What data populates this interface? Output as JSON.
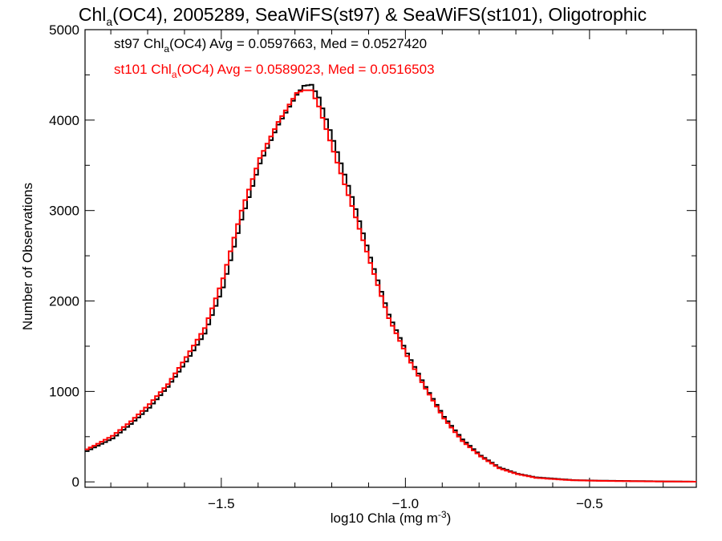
{
  "chart_data": {
    "type": "line",
    "title": "Chl",
    "title_sub": "a",
    "title_rest": "(OC4), 2005289, SeaWiFS(st97) & SeaWiFS(st101), Oligotrophic",
    "xlabel": "log10 Chla (mg m",
    "xlabel_sup": "-3",
    "xlabel_end": ")",
    "ylabel": "Number of Observations",
    "xlim": [
      -1.87,
      -0.21
    ],
    "ylim": [
      -60,
      5000
    ],
    "xticks": [
      -1.5,
      -1.0,
      -0.5
    ],
    "xtick_labels": [
      "−1.5",
      "−1.0",
      "−0.5"
    ],
    "yticks": [
      0,
      1000,
      2000,
      3000,
      4000,
      5000
    ],
    "ytick_labels": [
      "0",
      "1000",
      "2000",
      "3000",
      "4000",
      "5000"
    ],
    "step_style": "histogram-steps",
    "series": [
      {
        "name": "st97",
        "color": "#000000",
        "legend": {
          "pre": "st97 Chl",
          "sub": "a",
          "post": "(OC4) Avg = 0.0597663, Med = 0.0527420"
        },
        "x": [
          -1.87,
          -1.85,
          -1.8,
          -1.75,
          -1.7,
          -1.65,
          -1.6,
          -1.55,
          -1.5,
          -1.45,
          -1.4,
          -1.35,
          -1.3,
          -1.28,
          -1.26,
          -1.24,
          -1.2,
          -1.15,
          -1.1,
          -1.05,
          -1.0,
          -0.95,
          -0.9,
          -0.85,
          -0.8,
          -0.75,
          -0.7,
          -0.65,
          -0.6,
          -0.55,
          -0.5,
          -0.45,
          -0.4,
          -0.3,
          -0.21
        ],
        "y": [
          340,
          380,
          480,
          640,
          820,
          1050,
          1330,
          1640,
          2150,
          2900,
          3520,
          3950,
          4280,
          4380,
          4390,
          4250,
          3770,
          3150,
          2480,
          1850,
          1420,
          1050,
          720,
          470,
          290,
          160,
          90,
          50,
          35,
          20,
          15,
          12,
          10,
          5,
          2
        ]
      },
      {
        "name": "st101",
        "color": "#ff0000",
        "legend": {
          "pre": "st101 Chl",
          "sub": "a",
          "post": "(OC4) Avg = 0.0589023, Med = 0.0516503"
        },
        "x": [
          -1.87,
          -1.85,
          -1.8,
          -1.75,
          -1.7,
          -1.65,
          -1.6,
          -1.55,
          -1.5,
          -1.45,
          -1.4,
          -1.35,
          -1.3,
          -1.28,
          -1.26,
          -1.24,
          -1.2,
          -1.15,
          -1.1,
          -1.05,
          -1.0,
          -0.95,
          -0.9,
          -0.85,
          -0.8,
          -0.75,
          -0.7,
          -0.65,
          -0.6,
          -0.55,
          -0.5,
          -0.45,
          -0.4,
          -0.3,
          -0.21
        ],
        "y": [
          360,
          400,
          510,
          670,
          860,
          1080,
          1380,
          1700,
          2250,
          3000,
          3580,
          3980,
          4300,
          4330,
          4330,
          4150,
          3650,
          3050,
          2420,
          1810,
          1390,
          1030,
          700,
          450,
          280,
          150,
          85,
          45,
          30,
          18,
          13,
          10,
          8,
          4,
          2
        ]
      }
    ]
  }
}
